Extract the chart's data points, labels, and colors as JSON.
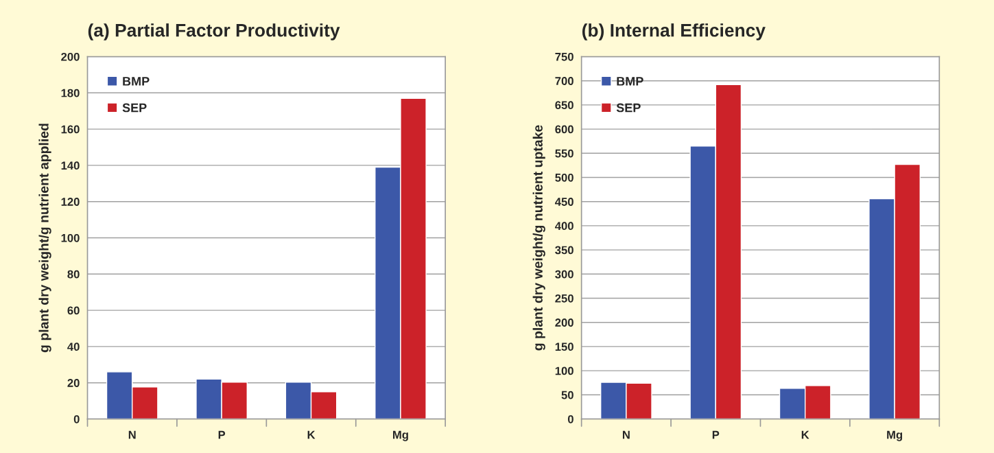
{
  "chart_data": [
    {
      "type": "bar",
      "title": "(a) Partial Factor Productivity",
      "ylabel": "g plant dry weight/g nutrient applied",
      "categories": [
        "N",
        "P",
        "K",
        "Mg"
      ],
      "series": [
        {
          "name": "BMP",
          "color": "#3c58a8",
          "values": [
            26,
            22,
            20.3,
            139
          ]
        },
        {
          "name": "SEP",
          "color": "#cc2229",
          "values": [
            17.7,
            20.3,
            15,
            177
          ]
        }
      ],
      "ylim": [
        0,
        200
      ],
      "yticks": [
        0,
        20,
        40,
        60,
        80,
        100,
        120,
        140,
        160,
        180,
        200
      ],
      "grid": "y",
      "legend": "top left"
    },
    {
      "type": "bar",
      "title": "(b) Internal Efficiency",
      "ylabel": "g plant dry weight/g nutrient uptake",
      "categories": [
        "N",
        "P",
        "K",
        "Mg"
      ],
      "series": [
        {
          "name": "BMP",
          "color": "#3c58a8",
          "values": [
            76,
            565,
            63.5,
            456
          ]
        },
        {
          "name": "SEP",
          "color": "#cc2229",
          "values": [
            74,
            692,
            69,
            527
          ]
        }
      ],
      "ylim": [
        0,
        750
      ],
      "yticks": [
        0,
        50,
        100,
        150,
        200,
        250,
        300,
        350,
        400,
        450,
        500,
        550,
        600,
        650,
        700,
        750
      ],
      "grid": "y",
      "legend": "top left"
    }
  ]
}
